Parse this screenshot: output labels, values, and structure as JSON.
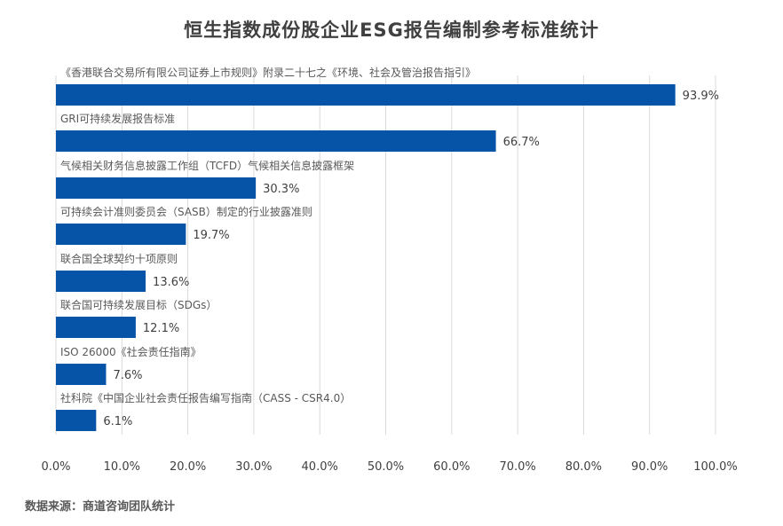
{
  "chart_data": {
    "type": "bar",
    "orientation": "horizontal",
    "title": "恒生指数成份股企业ESG报告编制参考标准统计",
    "categories": [
      "《香港联合交易所有限公司证券上市规则》附录二十七之《环境、社会及管治报告指引》",
      "GRI可持续发展报告标准",
      "气候相关财务信息披露工作组（TCFD）气候相关信息披露框架",
      "可持续会计准则委员会（SASB）制定的行业披露准则",
      "联合国全球契约十项原则",
      "联合国可持续发展目标（SDGs）",
      "ISO 26000《社会责任指南》",
      "社科院《中国企业社会责任报告编写指南（CASS - CSR4.0）"
    ],
    "values": [
      93.9,
      66.7,
      30.3,
      19.7,
      13.6,
      12.1,
      7.6,
      6.1
    ],
    "value_labels": [
      "93.9%",
      "66.7%",
      "30.3%",
      "19.7%",
      "13.6%",
      "12.1%",
      "7.6%",
      "6.1%"
    ],
    "xlim": [
      0,
      100
    ],
    "x_ticks": [
      "0.0%",
      "10.0%",
      "20.0%",
      "30.0%",
      "40.0%",
      "50.0%",
      "60.0%",
      "70.0%",
      "80.0%",
      "90.0%",
      "100.0%"
    ],
    "grid": true,
    "xlabel": "",
    "ylabel": "",
    "bar_color": "#0554A8",
    "grid_color": "#D9D9D9",
    "source": "数据来源：商道咨询团队统计"
  }
}
